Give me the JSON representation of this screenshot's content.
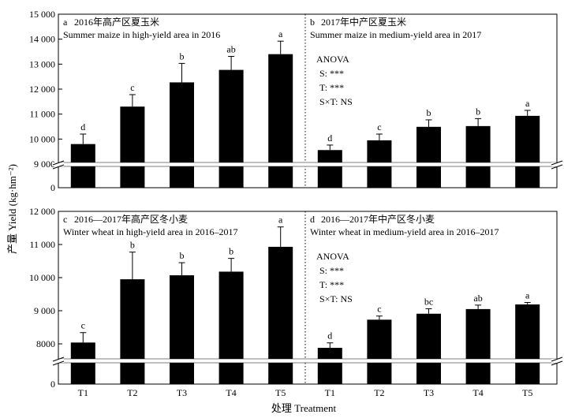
{
  "chart_data": [
    {
      "type": "bar",
      "panel_letter": "a",
      "title": "2016年高产区夏玉米",
      "subtitle": "Summer maize in high-yield area in 2016",
      "categories": [
        "T1",
        "T2",
        "T3",
        "T4",
        "T5"
      ],
      "values": [
        9800,
        11300,
        12270,
        12770,
        13400
      ],
      "errors": [
        400,
        480,
        760,
        540,
        520
      ],
      "letters": [
        "d",
        "c",
        "b",
        "ab",
        "a"
      ],
      "ylim": [
        8800,
        15000
      ],
      "yticks": [
        9000,
        10000,
        11000,
        12000,
        13000,
        14000,
        15000
      ],
      "ytick_labels": [
        "9 000",
        "10 000",
        "11 000",
        "12 000",
        "13 000",
        "14 000",
        "15 000"
      ],
      "axis_break": 9000
    },
    {
      "type": "bar",
      "panel_letter": "b",
      "title": "2017年中产区夏玉米",
      "subtitle": "Summer maize in medium-yield area in 2017",
      "categories": [
        "T1",
        "T2",
        "T3",
        "T4",
        "T5"
      ],
      "values": [
        9560,
        9950,
        10490,
        10520,
        10930
      ],
      "errors": [
        200,
        250,
        280,
        300,
        220
      ],
      "letters": [
        "d",
        "c",
        "b",
        "b",
        "a"
      ],
      "ylim": [
        8800,
        15000
      ],
      "axis_break": 9000,
      "anova": [
        "ANOVA",
        "S:  ***",
        "T:  ***",
        "S×T:  NS"
      ]
    },
    {
      "type": "bar",
      "panel_letter": "c",
      "title": "2016—2017年高产区冬小麦",
      "subtitle": "Winter wheat in high-yield area in 2016–2017",
      "categories": [
        "T1",
        "T2",
        "T3",
        "T4",
        "T5"
      ],
      "values": [
        8040,
        9950,
        10070,
        10180,
        10930
      ],
      "errors": [
        300,
        820,
        380,
        400,
        600
      ],
      "letters": [
        "c",
        "b",
        "b",
        "b",
        "a"
      ],
      "ylim": [
        7500,
        12000
      ],
      "yticks": [
        8000,
        9000,
        10000,
        11000,
        12000
      ],
      "ytick_labels": [
        "8000",
        "9 000",
        "10 000",
        "11 000",
        "12 000"
      ],
      "axis_break": 7500
    },
    {
      "type": "bar",
      "panel_letter": "d",
      "title": "2016—2017年中产区冬小麦",
      "subtitle": "Winter wheat in medium-yield area in 2016–2017",
      "categories": [
        "T1",
        "T2",
        "T3",
        "T4",
        "T5"
      ],
      "values": [
        7880,
        8730,
        8910,
        9050,
        9190
      ],
      "errors": [
        150,
        110,
        150,
        120,
        60
      ],
      "letters": [
        "d",
        "c",
        "bc",
        "ab",
        "a"
      ],
      "ylim": [
        7500,
        12000
      ],
      "axis_break": 7500,
      "anova": [
        "ANOVA",
        "S:  ***",
        "T:  ***",
        "S×T:  NS"
      ]
    }
  ],
  "ylabel": "产量 Yield (kg·hm⁻²)",
  "xlabel": "处理 Treatment",
  "zero_label": "0"
}
